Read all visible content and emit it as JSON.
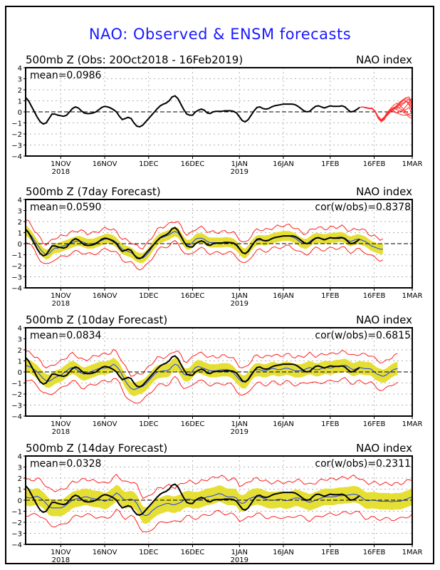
{
  "title": "NAO: Observed & ENSM forecasts",
  "colors": {
    "title": "#1a1aff",
    "observed": "#000000",
    "ensemble_mean": "#1a3cff",
    "spread_fill": "#e6df33",
    "envelope": "#ff2020",
    "ensemble_members": "#ff3030",
    "grid": "#b0b0b0"
  },
  "chart_data": [
    {
      "type": "line",
      "title": "500mb Z (Obs: 20Oct2018 - 16Feb2019)",
      "right_label": "NAO index",
      "annotation_left": "mean=0.0986",
      "annotation_right": "",
      "ylim": [
        -4,
        4
      ],
      "yticks": [
        4,
        3,
        2,
        1,
        0,
        -1,
        -2,
        -3,
        -4
      ],
      "x_unit": "days since 20Oct2018",
      "xlim": [
        0,
        132
      ],
      "xticks": [
        {
          "day": 12,
          "label": "1NOV",
          "sub": "2018"
        },
        {
          "day": 27,
          "label": "16NOV",
          "sub": ""
        },
        {
          "day": 42,
          "label": "1DEC",
          "sub": ""
        },
        {
          "day": 57,
          "label": "16DEC",
          "sub": ""
        },
        {
          "day": 73,
          "label": "1JAN",
          "sub": "2019"
        },
        {
          "day": 88,
          "label": "16JAN",
          "sub": ""
        },
        {
          "day": 104,
          "label": "1FEB",
          "sub": ""
        },
        {
          "day": 119,
          "label": "16FEB",
          "sub": ""
        },
        {
          "day": 132,
          "label": "1MAR",
          "sub": ""
        }
      ],
      "grid": true,
      "zero_line": "dashed",
      "observed": {
        "start_day": 0,
        "values": [
          1.3,
          1.0,
          0.5,
          0.0,
          -0.5,
          -0.9,
          -1.1,
          -1.0,
          -0.6,
          -0.2,
          -0.2,
          -0.3,
          -0.35,
          -0.4,
          -0.3,
          0.0,
          0.3,
          0.45,
          0.35,
          0.1,
          -0.1,
          -0.15,
          -0.15,
          -0.1,
          0.0,
          0.2,
          0.4,
          0.5,
          0.45,
          0.35,
          0.2,
          0.0,
          -0.4,
          -0.7,
          -0.6,
          -0.5,
          -0.6,
          -1.0,
          -1.3,
          -1.35,
          -1.2,
          -0.9,
          -0.6,
          -0.3,
          0.0,
          0.3,
          0.55,
          0.7,
          0.8,
          1.0,
          1.35,
          1.45,
          1.2,
          0.7,
          0.2,
          -0.2,
          -0.3,
          -0.3,
          0.0,
          0.15,
          0.25,
          0.15,
          -0.1,
          -0.15,
          0.0,
          0.05,
          0.05,
          0.05,
          0.1,
          0.1,
          0.1,
          0.05,
          -0.1,
          -0.45,
          -0.8,
          -0.9,
          -0.7,
          -0.3,
          0.1,
          0.4,
          0.45,
          0.3,
          0.25,
          0.3,
          0.45,
          0.55,
          0.6,
          0.65,
          0.7,
          0.7,
          0.7,
          0.7,
          0.65,
          0.5,
          0.3,
          0.1,
          0.0,
          0.05,
          0.3,
          0.5,
          0.55,
          0.45,
          0.35,
          0.45,
          0.55,
          0.5,
          0.5,
          0.5,
          0.55,
          0.45,
          0.2,
          0.0,
          0.05,
          0.2,
          0.4
        ]
      },
      "ensemble_members": {
        "start_day": 114,
        "count": 10,
        "values": [
          [
            0.4,
            0.45,
            0.35,
            0.3,
            0.35,
            0.1,
            -0.5,
            -0.8,
            -0.6,
            -0.3,
            0.0,
            0.3,
            0.6,
            0.9,
            1.1,
            1.3,
            1.35,
            0.6
          ],
          [
            0.4,
            0.45,
            0.4,
            0.35,
            0.3,
            0.0,
            -0.6,
            -0.9,
            -0.7,
            -0.2,
            0.2,
            0.4,
            0.5,
            0.7,
            1.0,
            1.2,
            1.1,
            0.3
          ],
          [
            0.4,
            0.45,
            0.35,
            0.3,
            0.3,
            0.1,
            -0.4,
            -0.7,
            -0.5,
            -0.1,
            0.1,
            0.3,
            0.2,
            0.1,
            0.0,
            -0.2,
            -0.5,
            -0.6
          ],
          [
            0.4,
            0.45,
            0.4,
            0.3,
            0.35,
            0.05,
            -0.5,
            -0.8,
            -0.6,
            -0.2,
            0.1,
            0.0,
            -0.1,
            0.0,
            0.2,
            0.5,
            0.9,
            1.3
          ],
          [
            0.4,
            0.45,
            0.4,
            0.35,
            0.35,
            0.1,
            -0.45,
            -0.75,
            -0.5,
            -0.1,
            0.3,
            0.6,
            0.8,
            0.6,
            0.3,
            0.0,
            -0.3,
            -0.4
          ],
          [
            0.4,
            0.45,
            0.35,
            0.3,
            0.3,
            0.0,
            -0.5,
            -0.85,
            -0.65,
            -0.3,
            0.0,
            0.2,
            0.4,
            0.6,
            0.8,
            1.0,
            0.8,
            0.0
          ],
          [
            0.4,
            0.45,
            0.4,
            0.3,
            0.35,
            0.1,
            -0.55,
            -0.8,
            -0.55,
            -0.15,
            0.2,
            0.4,
            0.3,
            0.4,
            0.7,
            0.9,
            1.2,
            1.0
          ],
          [
            0.4,
            0.45,
            0.35,
            0.3,
            0.3,
            0.05,
            -0.5,
            -0.7,
            -0.45,
            0.0,
            0.25,
            0.1,
            -0.1,
            -0.2,
            -0.3,
            -0.3,
            -0.2,
            -0.1
          ],
          [
            0.4,
            0.45,
            0.4,
            0.35,
            0.3,
            0.1,
            -0.4,
            -0.75,
            -0.6,
            -0.25,
            0.05,
            0.3,
            0.5,
            0.8,
            1.1,
            1.0,
            0.6,
            0.2
          ],
          [
            0.4,
            0.45,
            0.35,
            0.3,
            0.35,
            0.05,
            -0.55,
            -0.85,
            -0.6,
            -0.2,
            0.15,
            0.35,
            0.45,
            0.3,
            0.1,
            0.2,
            0.4,
            -0.2
          ]
        ]
      }
    },
    {
      "type": "line",
      "title": "500mb Z (7day Forecast)",
      "right_label": "NAO index",
      "annotation_left": "mean=0.0590",
      "annotation_right": "cor(w/obs)=0.8378",
      "ylim": [
        -4,
        4
      ],
      "yticks": [
        4,
        3,
        2,
        1,
        0,
        -1,
        -2,
        -3,
        -4
      ],
      "xlim": [
        0,
        132
      ],
      "grid": true,
      "zero_line": "dashed",
      "observed_ref": 0,
      "forecast": {
        "start_day": 0,
        "end_day": 126,
        "mean": [
          1.2,
          1.0,
          0.7,
          0.3,
          -0.1,
          -0.5,
          -0.8,
          -1.0,
          -0.9,
          -0.6,
          -0.4,
          -0.4,
          -0.3,
          -0.2,
          -0.1,
          0.0,
          0.1,
          0.2,
          0.25,
          0.2,
          0.1,
          0.0,
          0.0,
          0.0,
          0.1,
          0.2,
          0.3,
          0.4,
          0.45,
          0.4,
          0.3,
          0.1,
          -0.2,
          -0.5,
          -0.6,
          -0.7,
          -0.8,
          -1.0,
          -1.2,
          -1.3,
          -1.3,
          -1.1,
          -0.8,
          -0.4,
          0.0,
          0.3,
          0.5,
          0.6,
          0.7,
          0.8,
          1.0,
          1.1,
          1.0,
          0.6,
          0.2,
          -0.1,
          -0.1,
          0.1,
          0.4,
          0.5,
          0.5,
          0.4,
          0.2,
          0.1,
          0.1,
          0.1,
          0.1,
          0.1,
          0.15,
          0.15,
          0.1,
          0.0,
          -0.2,
          -0.5,
          -0.8,
          -0.9,
          -0.6,
          -0.2,
          0.1,
          0.3,
          0.35,
          0.3,
          0.3,
          0.35,
          0.45,
          0.55,
          0.6,
          0.65,
          0.7,
          0.7,
          0.7,
          0.6,
          0.5,
          0.3,
          0.1,
          0.0,
          0.0,
          0.2,
          0.4,
          0.5,
          0.5,
          0.45,
          0.4,
          0.45,
          0.5,
          0.55,
          0.55,
          0.6,
          0.6,
          0.5,
          0.3,
          0.2,
          0.3,
          0.4,
          0.4,
          0.3,
          0.2,
          0.0,
          -0.2,
          -0.3,
          -0.4,
          -0.5,
          -0.5
        ],
        "spread": 0.45,
        "envelope": 0.95,
        "observed_end_day": 119
      }
    },
    {
      "type": "line",
      "title": "500mb Z (10day Forecast)",
      "right_label": "NAO index",
      "annotation_left": "mean=0.0834",
      "annotation_right": "cor(w/obs)=0.6815",
      "ylim": [
        -4,
        4
      ],
      "yticks": [
        4,
        3,
        2,
        1,
        0,
        -1,
        -2,
        -3,
        -4
      ],
      "xlim": [
        0,
        132
      ],
      "grid": true,
      "zero_line": "dashed",
      "observed_ref": 0,
      "forecast": {
        "start_day": 0,
        "end_day": 129,
        "mean": [
          0.6,
          0.5,
          0.4,
          0.2,
          0.0,
          -0.3,
          -0.6,
          -0.8,
          -0.85,
          -0.7,
          -0.5,
          -0.4,
          -0.3,
          -0.1,
          0.1,
          0.3,
          0.4,
          0.3,
          0.1,
          -0.1,
          -0.2,
          -0.1,
          0.0,
          0.1,
          0.2,
          0.3,
          0.35,
          0.35,
          0.4,
          0.5,
          0.7,
          0.5,
          0.2,
          -0.3,
          -0.8,
          -1.2,
          -1.5,
          -1.6,
          -1.5,
          -1.4,
          -1.3,
          -1.1,
          -0.8,
          -0.5,
          -0.2,
          0.0,
          0.05,
          0.1,
          0.1,
          0.2,
          0.5,
          0.7,
          0.6,
          0.2,
          -0.2,
          -0.3,
          -0.2,
          0.1,
          0.4,
          0.5,
          0.4,
          0.3,
          0.2,
          0.1,
          0.1,
          0.1,
          0.15,
          0.2,
          0.2,
          0.2,
          0.1,
          -0.1,
          -0.4,
          -0.7,
          -0.9,
          -0.9,
          -0.6,
          -0.2,
          0.1,
          0.2,
          0.2,
          0.1,
          0.1,
          0.2,
          0.3,
          0.3,
          0.2,
          0.2,
          0.3,
          0.35,
          0.3,
          0.2,
          0.1,
          0.1,
          0.1,
          0.2,
          0.3,
          0.4,
          0.3,
          0.2,
          0.2,
          0.3,
          0.4,
          0.4,
          0.35,
          0.4,
          0.5,
          0.5,
          0.55,
          0.6,
          0.5,
          0.3,
          0.2,
          0.3,
          0.4,
          0.35,
          0.3,
          0.3,
          0.25,
          0.0,
          -0.2,
          -0.3,
          -0.4,
          -0.3,
          -0.1,
          0.1,
          0.25,
          0.3
        ],
        "spread": 0.6,
        "envelope": 1.25,
        "observed_end_day": 119
      }
    },
    {
      "type": "line",
      "title": "500mb Z (14day Forecast)",
      "right_label": "NAO index",
      "annotation_left": "mean=0.0328",
      "annotation_right": "cor(w/obs)=0.2311",
      "ylim": [
        -4,
        4
      ],
      "yticks": [
        4,
        3,
        2,
        1,
        0,
        -1,
        -2,
        -3,
        -4
      ],
      "xlim": [
        0,
        132
      ],
      "grid": true,
      "zero_line": "dashed",
      "observed_ref": 0,
      "forecast": {
        "start_day": 0,
        "end_day": 132,
        "mean": [
          0.3,
          0.2,
          0.2,
          0.3,
          0.35,
          0.2,
          0.0,
          -0.3,
          -0.6,
          -0.7,
          -0.7,
          -0.7,
          -0.7,
          -0.6,
          -0.4,
          -0.2,
          0.0,
          0.1,
          0.15,
          0.2,
          0.3,
          0.3,
          0.2,
          0.15,
          0.1,
          0.1,
          0.0,
          -0.1,
          0.0,
          0.2,
          0.4,
          0.65,
          0.5,
          0.2,
          0.0,
          0.05,
          0.1,
          0.0,
          -0.3,
          -0.8,
          -1.3,
          -1.4,
          -1.3,
          -1.0,
          -0.8,
          -0.6,
          -0.5,
          -0.4,
          -0.3,
          -0.3,
          -0.4,
          -0.4,
          -0.3,
          -0.2,
          0.0,
          0.1,
          0.1,
          0.0,
          0.0,
          0.0,
          0.1,
          0.2,
          0.3,
          0.35,
          0.4,
          0.5,
          0.6,
          0.55,
          0.4,
          0.3,
          0.3,
          0.3,
          0.2,
          -0.2,
          -0.3,
          -0.2,
          0.1,
          0.2,
          0.3,
          0.35,
          0.3,
          0.2,
          0.1,
          0.0,
          0.0,
          0.0,
          0.05,
          0.1,
          0.0,
          -0.05,
          0.0,
          0.1,
          0.2,
          0.2,
          0.1,
          0.0,
          -0.1,
          -0.2,
          -0.1,
          0.0,
          0.1,
          0.2,
          0.3,
          0.3,
          0.3,
          0.3,
          0.35,
          0.4,
          0.4,
          0.45,
          0.45,
          0.5,
          0.55,
          0.5,
          0.4,
          0.2,
          0.0,
          -0.05,
          0.0,
          0.0,
          -0.05,
          -0.1,
          -0.1,
          -0.1,
          -0.1,
          -0.15,
          -0.1,
          -0.1,
          -0.1,
          0.0,
          0.1,
          0.2,
          0.3
        ],
        "spread": 0.75,
        "envelope": 1.6,
        "observed_end_day": 119
      }
    }
  ]
}
